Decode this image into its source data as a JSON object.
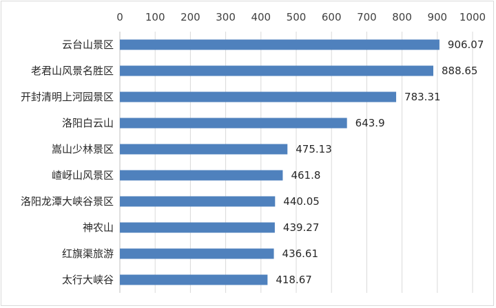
{
  "chart_data": {
    "type": "bar",
    "orientation": "horizontal",
    "categories": [
      "云台山景区",
      "老君山风景名胜区",
      "开封清明上河园景区",
      "洛阳白云山",
      "嵩山少林景区",
      "嵖岈山风景区",
      "洛阳龙潭大峡谷景区",
      "神农山",
      "红旗渠旅游",
      "太行大峡谷"
    ],
    "values": [
      906.07,
      888.65,
      783.31,
      643.9,
      475.13,
      461.8,
      440.05,
      439.27,
      436.61,
      418.67
    ],
    "value_labels": [
      "906.07",
      "888.65",
      "783.31",
      "643.9",
      "475.13",
      "461.8",
      "440.05",
      "439.27",
      "436.61",
      "418.67"
    ],
    "xlim": [
      0,
      1000
    ],
    "x_ticks": [
      0,
      100,
      200,
      300,
      400,
      500,
      600,
      700,
      800,
      900,
      1000
    ],
    "x_axis_position": "top",
    "grid": true,
    "bar_color": "#4f81bd",
    "title": "",
    "xlabel": "",
    "ylabel": ""
  }
}
